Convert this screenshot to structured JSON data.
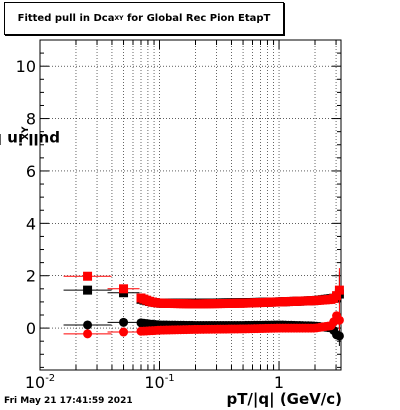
{
  "title": "Fitted pull in Dca",
  "title_sub": "XY",
  "title_tail": " for Global Rec Pion EtapT",
  "timestamp": "Fri May 21 17:41:59 2021",
  "chart_data": {
    "type": "scatter",
    "xlabel": "pT/|q| (GeV/c)",
    "ylabel": "pull in Dca",
    "ylabel_sub": "XY",
    "x_scale": "log",
    "xlim": [
      0.01,
      3.3
    ],
    "ylim": [
      -1.6,
      11.0
    ],
    "grid": true,
    "yticks": [
      0,
      2,
      4,
      6,
      8,
      10
    ],
    "xtick_labels": [
      {
        "value": 0.01,
        "base": "10",
        "exp": "-2"
      },
      {
        "value": 0.1,
        "base": "10",
        "exp": "-1"
      },
      {
        "value": 1,
        "base": "1",
        "exp": ""
      }
    ],
    "series": [
      {
        "marker": "square",
        "color": "#000000",
        "x": [
          0.025,
          0.05,
          0.07,
          0.085,
          0.1,
          0.2,
          0.5,
          1.0,
          2.0,
          3.0,
          3.2
        ],
        "y": [
          1.45,
          1.35,
          1.1,
          1.0,
          0.95,
          0.95,
          0.97,
          1.0,
          1.05,
          1.15,
          1.3
        ]
      },
      {
        "marker": "square",
        "color": "#ff0000",
        "x": [
          0.025,
          0.05,
          0.07,
          0.085,
          0.1,
          0.2,
          0.5,
          1.0,
          2.0,
          2.8,
          3.0,
          3.2
        ],
        "y": [
          1.98,
          1.5,
          1.15,
          1.0,
          0.95,
          0.92,
          0.95,
          1.0,
          1.05,
          1.1,
          1.2,
          1.45
        ]
      },
      {
        "marker": "circle",
        "color": "#000000",
        "x": [
          0.025,
          0.05,
          0.07,
          0.085,
          0.1,
          0.2,
          0.5,
          1.0,
          2.0,
          2.8,
          3.0,
          3.2
        ],
        "y": [
          0.12,
          0.22,
          0.2,
          0.15,
          0.12,
          0.1,
          0.1,
          0.12,
          0.08,
          0.0,
          -0.25,
          -0.3
        ]
      },
      {
        "marker": "circle",
        "color": "#ff0000",
        "x": [
          0.025,
          0.05,
          0.07,
          0.085,
          0.1,
          0.2,
          0.5,
          1.0,
          2.0,
          2.8,
          3.0,
          3.2
        ],
        "y": [
          -0.22,
          -0.15,
          -0.12,
          -0.1,
          -0.08,
          -0.05,
          -0.03,
          0.0,
          0.0,
          0.1,
          0.5,
          0.3
        ]
      }
    ]
  }
}
